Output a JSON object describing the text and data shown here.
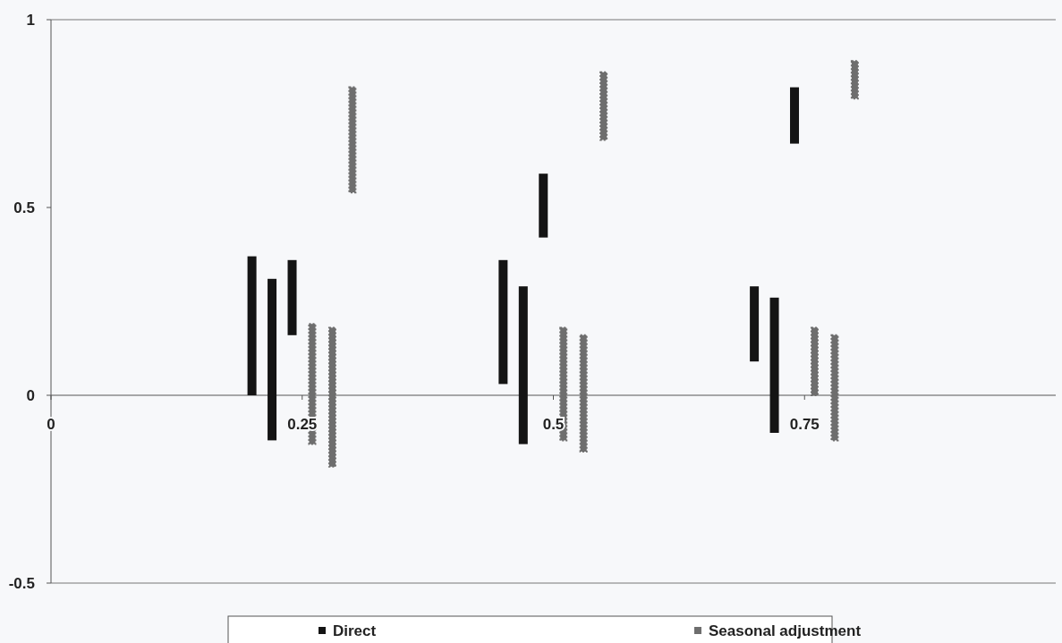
{
  "chart_data": {
    "type": "bar",
    "xlim": [
      0,
      1
    ],
    "xticks": [
      0,
      0.25,
      0.5,
      0.75
    ],
    "ylim": [
      -0.5,
      1
    ],
    "yticks": [
      -0.5,
      0,
      0.5,
      1
    ],
    "grid": false,
    "legend": "bottom",
    "series": [
      {
        "name": "Direct",
        "color": "#141414",
        "x": [
          0.2,
          0.22,
          0.24,
          0.45,
          0.47,
          0.49,
          0.7,
          0.72,
          0.74
        ],
        "base": [
          0,
          -0.12,
          0.16,
          0.03,
          -0.13,
          0.42,
          0.09,
          -0.1,
          0.67
        ],
        "values": [
          0.37,
          0.43,
          0.2,
          0.33,
          0.42,
          0.17,
          0.2,
          0.36,
          0.15
        ]
      },
      {
        "name": "Seasonal adjustment",
        "color": "#6e6e6e",
        "marker": "diamond",
        "x": [
          0.26,
          0.28,
          0.3,
          0.51,
          0.53,
          0.55,
          0.76,
          0.78,
          0.8
        ],
        "base": [
          -0.13,
          -0.19,
          0.54,
          -0.12,
          -0.15,
          0.68,
          0,
          -0.12,
          0.79
        ],
        "values": [
          0.32,
          0.37,
          0.28,
          0.3,
          0.31,
          0.18,
          0.18,
          0.28,
          0.1
        ]
      }
    ]
  }
}
